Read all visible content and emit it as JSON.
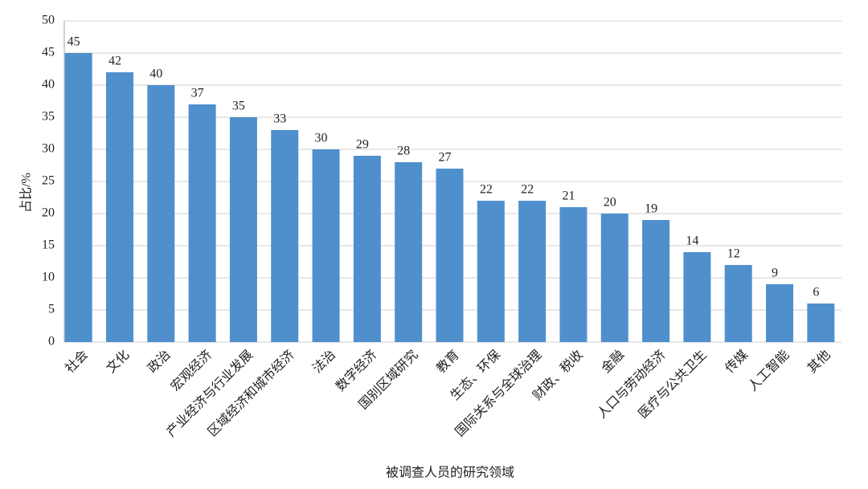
{
  "chart_data": {
    "type": "bar",
    "x_label": "被调查人员的研究领域",
    "y_label": "占比/%",
    "categories": [
      "社会",
      "文化",
      "政治",
      "宏观经济",
      "产业经济与行业发展",
      "区域经济和城市经济",
      "法治",
      "数字经济",
      "国别区域研究",
      "教育",
      "生态、环保",
      "国际关系与全球治理",
      "财政、税收",
      "金融",
      "人口与劳动经济",
      "医疗与公共卫生",
      "传媒",
      "人工智能",
      "其他"
    ],
    "values": [
      45,
      42,
      40,
      37,
      35,
      33,
      30,
      29,
      28,
      27,
      22,
      22,
      21,
      20,
      19,
      14,
      12,
      9,
      6
    ],
    "color": "#4f90cc",
    "ylim": [
      0,
      50
    ],
    "yticks": [
      0,
      5,
      10,
      15,
      20,
      25,
      30,
      35,
      40,
      45,
      50
    ],
    "grid": true
  }
}
